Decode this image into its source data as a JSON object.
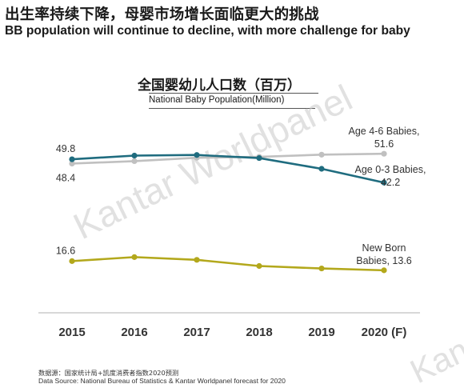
{
  "header": {
    "title": "出生率持续下降，母婴市场增长面临更大的挑战",
    "subtitle": "BB population will continue to decline, with more challenge for baby"
  },
  "watermark": "Kantar Worldpanel",
  "watermark_corner": "Kanta",
  "chart_data": {
    "type": "line",
    "title": "全国婴幼儿人口数（百万）",
    "subtitle": "National Baby Population(Million)",
    "categories": [
      "2015",
      "2016",
      "2017",
      "2018",
      "2019",
      "2020 (F)"
    ],
    "ylim": [
      0,
      60
    ],
    "grid": false,
    "legend": "none",
    "series": [
      {
        "name": "Age 0-3 Babies",
        "color": "#1f6c7f",
        "values": [
          49.8,
          51.0,
          51.2,
          50.2,
          46.7,
          42.2
        ],
        "labels": [
          {
            "index": 0,
            "text": "49.8",
            "placement": "above"
          },
          {
            "index": 5,
            "text": "Age 0-3 Babies,",
            "placement": "right-above"
          },
          {
            "index": 5,
            "text": "42.2",
            "placement": "right-below"
          }
        ]
      },
      {
        "name": "Age 4-6 Babies",
        "color": "#c0c0c0",
        "values": [
          48.4,
          49.2,
          50.3,
          50.6,
          51.3,
          51.6
        ],
        "labels": [
          {
            "index": 0,
            "text": "48.4",
            "placement": "below"
          },
          {
            "index": 5,
            "text": "Age 4-6 Babies,",
            "placement": "above-2"
          },
          {
            "index": 5,
            "text": "51.6",
            "placement": "above-1"
          }
        ]
      },
      {
        "name": "New Born Babies",
        "color": "#b3a81c",
        "values": [
          16.6,
          17.9,
          17.0,
          15.0,
          14.2,
          13.6
        ],
        "labels": [
          {
            "index": 0,
            "text": "16.6",
            "placement": "above"
          },
          {
            "index": 5,
            "text": "New Born",
            "placement": "above-2"
          },
          {
            "index": 5,
            "text": "Babies, 13.6",
            "placement": "above-1"
          }
        ]
      }
    ]
  },
  "footer": {
    "source_cn": "数据源：国家统计局+凯度消费者指数2020预测",
    "source_en": "Data Source: National Bureau of Statistics & Kantar Worldpanel forecast for 2020"
  }
}
